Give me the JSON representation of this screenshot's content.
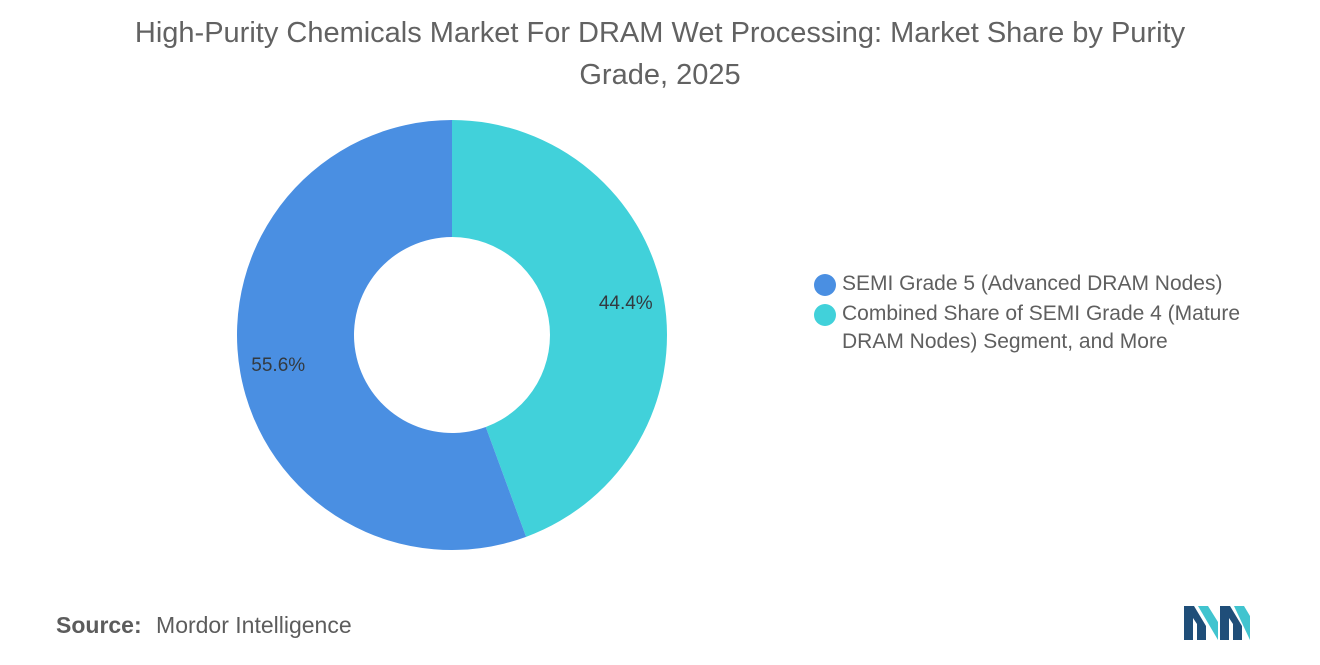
{
  "chart_data": {
    "type": "pie",
    "donut": true,
    "title": "High-Purity Chemicals Market For DRAM Wet Processing: Market Share by Purity Grade, 2025",
    "slices": [
      {
        "label": "SEMI Grade 5 (Advanced DRAM Nodes)",
        "value": 55.6,
        "display": "55.6%",
        "color": "#4a8fe2"
      },
      {
        "label": "Combined Share of SEMI Grade 4 (Mature DRAM Nodes) Segment, and More",
        "value": 44.4,
        "display": "44.4%",
        "color": "#41d1da"
      }
    ],
    "legend_position": "right"
  },
  "source": {
    "label": "Source:",
    "value": "Mordor Intelligence"
  },
  "logo": {
    "icon": "mordor-intelligence-logo-icon",
    "colors": [
      "#1f4e79",
      "#41c4cf"
    ]
  }
}
